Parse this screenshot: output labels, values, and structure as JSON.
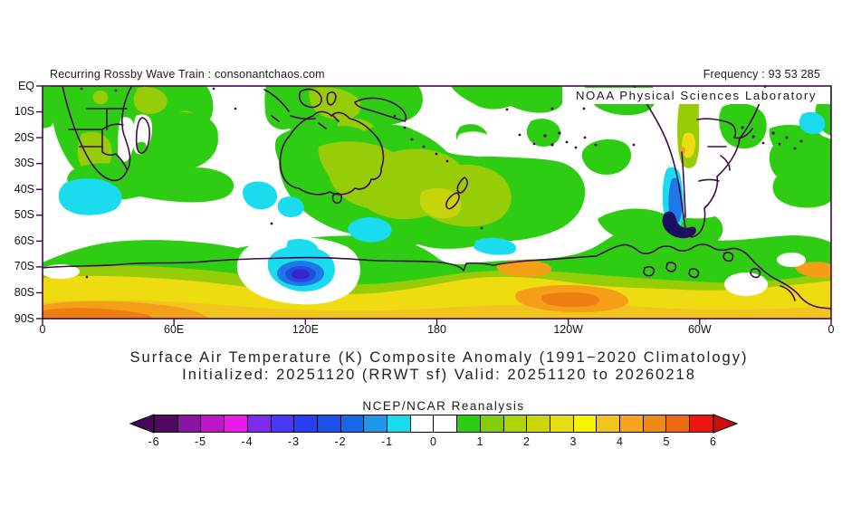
{
  "header": {
    "left_caption": "Recurring Rossby Wave Train : consonantchaos.com",
    "frequency_label": "Frequency : 93 53 285",
    "noaa_label": "NOAA Physical Sciences Laboratory"
  },
  "axes": {
    "lat_labels": [
      "EQ",
      "10S",
      "20S",
      "30S",
      "40S",
      "50S",
      "60S",
      "70S",
      "80S",
      "90S"
    ],
    "lon_labels": [
      "0",
      "60E",
      "120E",
      "180",
      "120W",
      "60W",
      "0"
    ]
  },
  "titles": {
    "line1": "Surface Air Temperature (K) Composite Anomaly (1991−2020 Climatology)",
    "line2": "Initialized: 20251120 (RRWT sf) Valid: 20251120 to 20260218"
  },
  "colorbar": {
    "title": "NCEP/NCAR Reanalysis",
    "tick_labels": [
      "-6",
      "-5",
      "-4",
      "-3",
      "-2",
      "-1",
      "0",
      "1",
      "2",
      "3",
      "4",
      "5",
      "6"
    ],
    "cells": [
      "#500a62",
      "#8a14a6",
      "#bc16c6",
      "#e61ce6",
      "#7a2cea",
      "#4c38f0",
      "#2840ee",
      "#1c52ea",
      "#1668e6",
      "#2096e8",
      "#18dcee",
      "#ffffff",
      "#ffffff",
      "#2ecc12",
      "#84cc0c",
      "#aed40a",
      "#ccd40a",
      "#e8dc14",
      "#f8f400",
      "#f2c41e",
      "#f5a41c",
      "#f28814",
      "#ee6a12",
      "#ee1410"
    ],
    "left_arrow_color": "#46085a",
    "right_arrow_color": "#cc0e0e"
  },
  "colors": {
    "frame_and_coastlines": "#400a48",
    "anomaly_green": "#2ecc12",
    "anomaly_yellow_green": "#97cc08",
    "anomaly_pale_olive": "#c6d40c",
    "anomaly_yellow": "#eedc10",
    "anomaly_gold": "#f2c41e",
    "anomaly_orange": "#f59e18",
    "anomaly_deep_orange": "#ee7e12",
    "anomaly_cyan": "#1adcee",
    "anomaly_blue": "#1e78e8",
    "anomaly_deep_blue": "#1e50e0",
    "anomaly_indigo_core": "#3a22cc",
    "anomaly_navy": "#1c1060"
  },
  "chart_data": {
    "type": "filled-contour-map",
    "variable": "Surface Air Temperature Composite Anomaly",
    "units": "K",
    "climatology": "1991-2020",
    "lat_extent": [
      "EQ",
      "90S"
    ],
    "lon_ticks": [
      "0",
      "60E",
      "120E",
      "180",
      "120W",
      "60W",
      "0"
    ],
    "scale_min": -6,
    "scale_max": 6,
    "contour_interval": 0.5,
    "notable_features": [
      {
        "region": "Antarctic interior band (60S-90S)",
        "anomaly_K": "+1 to +4.5, orange maxima near 0-60E coast and ~130W"
      },
      {
        "region": "East Antarctic coast near 115E, 72S",
        "anomaly_K": "-3.5 cold core (blue blob)"
      },
      {
        "region": "Patagonia / southern Andes",
        "anomaly_K": "down to -6 narrow cold streak"
      },
      {
        "region": "Southern Africa, Australia, New Zealand, South Pacific",
        "anomaly_K": "+0.5 to +2 broad warm anomalies"
      },
      {
        "region": "Scattered midlatitude ocean patches",
        "anomaly_K": "-1 to -0.5 (cyan)"
      }
    ]
  }
}
